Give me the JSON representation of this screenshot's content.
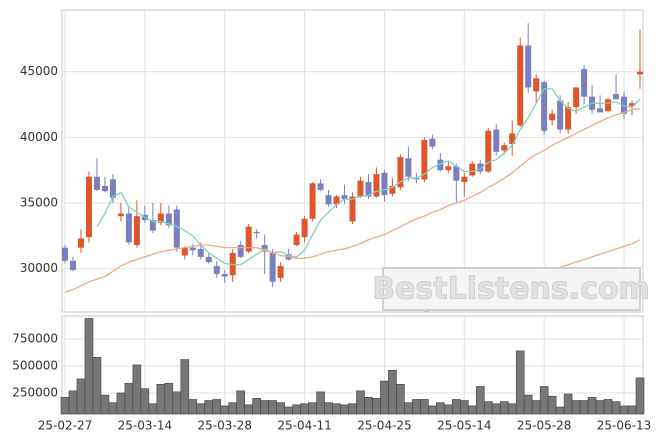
{
  "chart_data": [
    {
      "type": "candlestick",
      "open": [
        31600,
        30600,
        31600,
        32400,
        37000,
        36300,
        36800,
        34000,
        34200,
        31800,
        34100,
        33700,
        33500,
        34200,
        34500,
        31000,
        31600,
        31500,
        30900,
        30200,
        29600,
        29500,
        31800,
        31300,
        32800,
        31800,
        31200,
        29300,
        31100,
        31800,
        32400,
        33800,
        36500,
        35600,
        34900,
        35600,
        33600,
        35500,
        36600,
        35500,
        37300,
        35700,
        36200,
        38400,
        36900,
        36800,
        39900,
        38300,
        37500,
        37800,
        36600,
        37100,
        38000,
        37400,
        40600,
        39000,
        39500,
        40900,
        47000,
        43500,
        44200,
        41300,
        42800,
        40600,
        42300,
        45200,
        43100,
        42200,
        42000,
        43300,
        43100,
        42400,
        44800
      ],
      "high": [
        31800,
        30900,
        33000,
        37400,
        38400,
        37000,
        37200,
        35000,
        34800,
        35200,
        34800,
        35000,
        35000,
        34800,
        34800,
        31700,
        31900,
        32000,
        31200,
        30600,
        29900,
        31500,
        32100,
        33400,
        33000,
        32600,
        31500,
        30500,
        31500,
        32800,
        34000,
        36600,
        36800,
        36000,
        35600,
        36400,
        35800,
        37000,
        37200,
        37700,
        37500,
        36900,
        38700,
        39300,
        37300,
        40000,
        40200,
        38800,
        38200,
        38000,
        37300,
        38200,
        38300,
        40700,
        41000,
        39600,
        41300,
        47600,
        48700,
        44800,
        44300,
        42100,
        43200,
        42700,
        43800,
        45500,
        44000,
        43200,
        43000,
        44800,
        43500,
        42800,
        48200
      ],
      "low": [
        30400,
        29800,
        31200,
        32000,
        35900,
        35800,
        35000,
        33600,
        31800,
        31600,
        33500,
        32700,
        33300,
        33100,
        31300,
        30700,
        31000,
        30700,
        30400,
        29300,
        28900,
        29000,
        30800,
        31200,
        32300,
        29600,
        28600,
        29000,
        30600,
        31700,
        32000,
        33600,
        35900,
        34700,
        34600,
        34900,
        33400,
        35400,
        35300,
        35400,
        35100,
        35500,
        36000,
        36700,
        36500,
        36600,
        39100,
        37400,
        37300,
        35000,
        35500,
        37000,
        37200,
        37300,
        38600,
        38700,
        38600,
        40800,
        43400,
        42700,
        40200,
        40900,
        40300,
        40300,
        41800,
        42500,
        41800,
        41900,
        41900,
        42900,
        41400,
        41700,
        43700
      ],
      "close": [
        30600,
        29900,
        32300,
        37000,
        36000,
        35900,
        35400,
        34200,
        32000,
        34000,
        33700,
        32900,
        34200,
        33300,
        31600,
        31600,
        31400,
        30900,
        30500,
        29600,
        29400,
        31200,
        30900,
        33200,
        32700,
        31300,
        29000,
        30200,
        30700,
        32600,
        33800,
        36500,
        36000,
        34900,
        35500,
        35300,
        35500,
        36700,
        35500,
        37200,
        35600,
        36300,
        38500,
        37000,
        36800,
        39800,
        39300,
        37500,
        37800,
        36700,
        37000,
        38000,
        37400,
        40500,
        38900,
        39400,
        40300,
        47000,
        43800,
        44500,
        40500,
        41800,
        40600,
        42300,
        43800,
        43100,
        42100,
        41900,
        42900,
        42900,
        41800,
        42600,
        45000
      ],
      "up_color": "#e0552a",
      "down_color": "#7a7fc0",
      "lines": [
        {
          "color": "#7fd1b9",
          "values": [
            null,
            null,
            null,
            null,
            33200,
            34200,
            35500,
            35800,
            34700,
            34300,
            33900,
            33600,
            33600,
            33400,
            33200,
            32900,
            32500,
            31800,
            31200,
            30800,
            30400,
            30300,
            30300,
            30700,
            31100,
            31500,
            31200,
            31300,
            31000,
            30900,
            31400,
            32600,
            33700,
            34300,
            34900,
            35300,
            35300,
            35500,
            35600,
            35900,
            36000,
            36200,
            36600,
            36900,
            36900,
            37200,
            37700,
            38000,
            38200,
            37800,
            37400,
            37400,
            37600,
            38100,
            38300,
            38800,
            39400,
            40600,
            41500,
            42600,
            43700,
            43700,
            42800,
            42200,
            42000,
            42300,
            42600,
            42600,
            42600,
            42700,
            42400,
            42300,
            42900
          ]
        },
        {
          "color": "#f0a888",
          "values": [
            28200,
            28400,
            28700,
            29000,
            29200,
            29400,
            29800,
            30200,
            30500,
            30700,
            30900,
            31100,
            31300,
            31400,
            31500,
            31600,
            31700,
            31800,
            31800,
            31700,
            31600,
            31600,
            31600,
            31600,
            31600,
            31400,
            31200,
            31000,
            30900,
            30800,
            30800,
            30900,
            31100,
            31300,
            31400,
            31500,
            31700,
            31900,
            32200,
            32400,
            32600,
            32900,
            33200,
            33500,
            33800,
            34000,
            34300,
            34500,
            34800,
            35000,
            35200,
            35500,
            35800,
            36200,
            36500,
            36900,
            37300,
            37800,
            38300,
            38700,
            39000,
            39400,
            39700,
            40000,
            40300,
            40600,
            40900,
            41200,
            41500,
            41700,
            41900,
            42100,
            42200
          ]
        },
        {
          "color": "#f0a888",
          "values": [
            null,
            null,
            null,
            null,
            null,
            null,
            null,
            null,
            null,
            null,
            null,
            null,
            null,
            null,
            null,
            null,
            null,
            null,
            null,
            null,
            null,
            null,
            null,
            null,
            null,
            null,
            null,
            null,
            null,
            null,
            null,
            null,
            null,
            null,
            null,
            null,
            null,
            null,
            null,
            null,
            null,
            null,
            null,
            null,
            null,
            26700,
            26900,
            27100,
            27300,
            27500,
            27700,
            27900,
            28100,
            28300,
            28500,
            28700,
            28900,
            29100,
            29300,
            29500,
            29700,
            29900,
            30100,
            30300,
            30500,
            30700,
            30900,
            31100,
            31300,
            31500,
            31700,
            31900,
            32200
          ]
        }
      ],
      "ylim": [
        26700,
        49700
      ],
      "yticks": [
        30000,
        35000,
        40000,
        45000
      ],
      "grid": true,
      "watermark": "BestListens.com"
    },
    {
      "type": "bar",
      "categories": [
        "25-02-27",
        null,
        null,
        null,
        null,
        null,
        null,
        null,
        null,
        null,
        "25-03-14",
        null,
        null,
        null,
        null,
        null,
        null,
        null,
        null,
        null,
        "25-03-28",
        null,
        null,
        null,
        null,
        null,
        null,
        null,
        null,
        null,
        "25-04-11",
        null,
        null,
        null,
        null,
        null,
        null,
        null,
        null,
        null,
        "25-04-25",
        null,
        null,
        null,
        null,
        null,
        null,
        null,
        null,
        null,
        "25-05-14",
        null,
        null,
        null,
        null,
        null,
        null,
        null,
        null,
        null,
        "25-05-28",
        null,
        null,
        null,
        null,
        null,
        null,
        null,
        null,
        null,
        "25-06-13",
        null,
        null
      ],
      "values": [
        210000,
        270000,
        380000,
        940000,
        580000,
        230000,
        160000,
        250000,
        340000,
        510000,
        290000,
        150000,
        330000,
        340000,
        260000,
        560000,
        190000,
        150000,
        180000,
        190000,
        130000,
        160000,
        270000,
        140000,
        200000,
        180000,
        180000,
        160000,
        120000,
        140000,
        150000,
        160000,
        260000,
        160000,
        150000,
        140000,
        150000,
        270000,
        210000,
        200000,
        360000,
        460000,
        330000,
        160000,
        190000,
        190000,
        130000,
        160000,
        140000,
        190000,
        180000,
        130000,
        310000,
        170000,
        150000,
        170000,
        150000,
        640000,
        230000,
        180000,
        310000,
        220000,
        120000,
        240000,
        180000,
        180000,
        210000,
        180000,
        190000,
        170000,
        130000,
        130000,
        390000
      ],
      "color": "#777777",
      "ylim": [
        55000,
        963000
      ],
      "yticks": [
        250000,
        500000,
        750000
      ],
      "grid": true
    }
  ]
}
